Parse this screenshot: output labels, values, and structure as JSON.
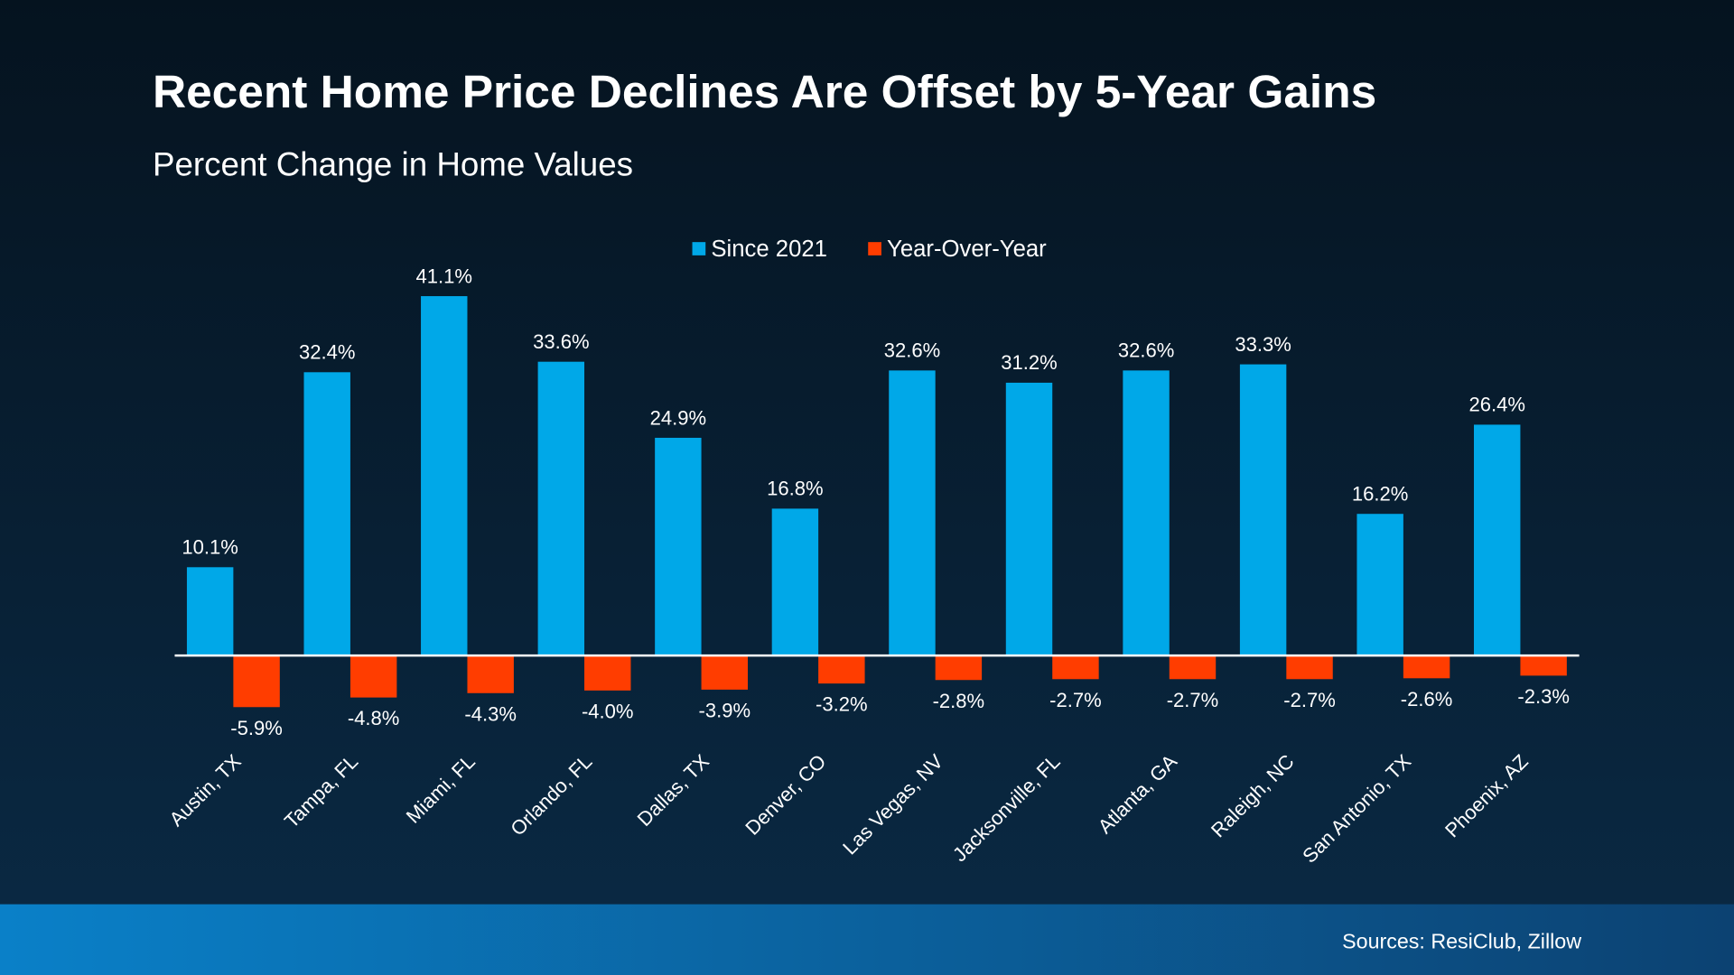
{
  "chart_data": {
    "type": "bar",
    "title": "Recent Home Price Declines Are Offset by 5-Year Gains",
    "subtitle": "Percent Change in Home Values",
    "categories": [
      "Austin, TX",
      "Tampa, FL",
      "Miami, FL",
      "Orlando, FL",
      "Dallas, TX",
      "Denver, CO",
      "Las Vegas, NV",
      "Jacksonville, FL",
      "Atlanta, GA",
      "Raleigh, NC",
      "San Antonio, TX",
      "Phoenix, AZ"
    ],
    "series": [
      {
        "name": "Since 2021",
        "color": "#00a8e8",
        "values": [
          10.1,
          32.4,
          41.1,
          33.6,
          24.9,
          16.8,
          32.6,
          31.2,
          32.6,
          33.3,
          16.2,
          26.4
        ],
        "labels": [
          "10.1%",
          "32.4%",
          "41.1%",
          "33.6%",
          "24.9%",
          "16.8%",
          "32.6%",
          "31.2%",
          "32.6%",
          "33.3%",
          "16.2%",
          "26.4%"
        ]
      },
      {
        "name": "Year-Over-Year",
        "color": "#ff3d00",
        "values": [
          -5.9,
          -4.8,
          -4.3,
          -4.0,
          -3.9,
          -3.2,
          -2.8,
          -2.7,
          -2.7,
          -2.7,
          -2.6,
          -2.3
        ],
        "labels": [
          "-5.9%",
          "-4.8%",
          "-4.3%",
          "-4.0%",
          "-3.9%",
          "-3.2%",
          "-2.8%",
          "-2.7%",
          "-2.7%",
          "-2.7%",
          "-2.6%",
          "-2.3%"
        ]
      }
    ],
    "legend": "top-center",
    "grid": false,
    "xlabel": "",
    "ylabel": ""
  },
  "footer": {
    "sources": "Sources: ResiClub, Zillow"
  }
}
